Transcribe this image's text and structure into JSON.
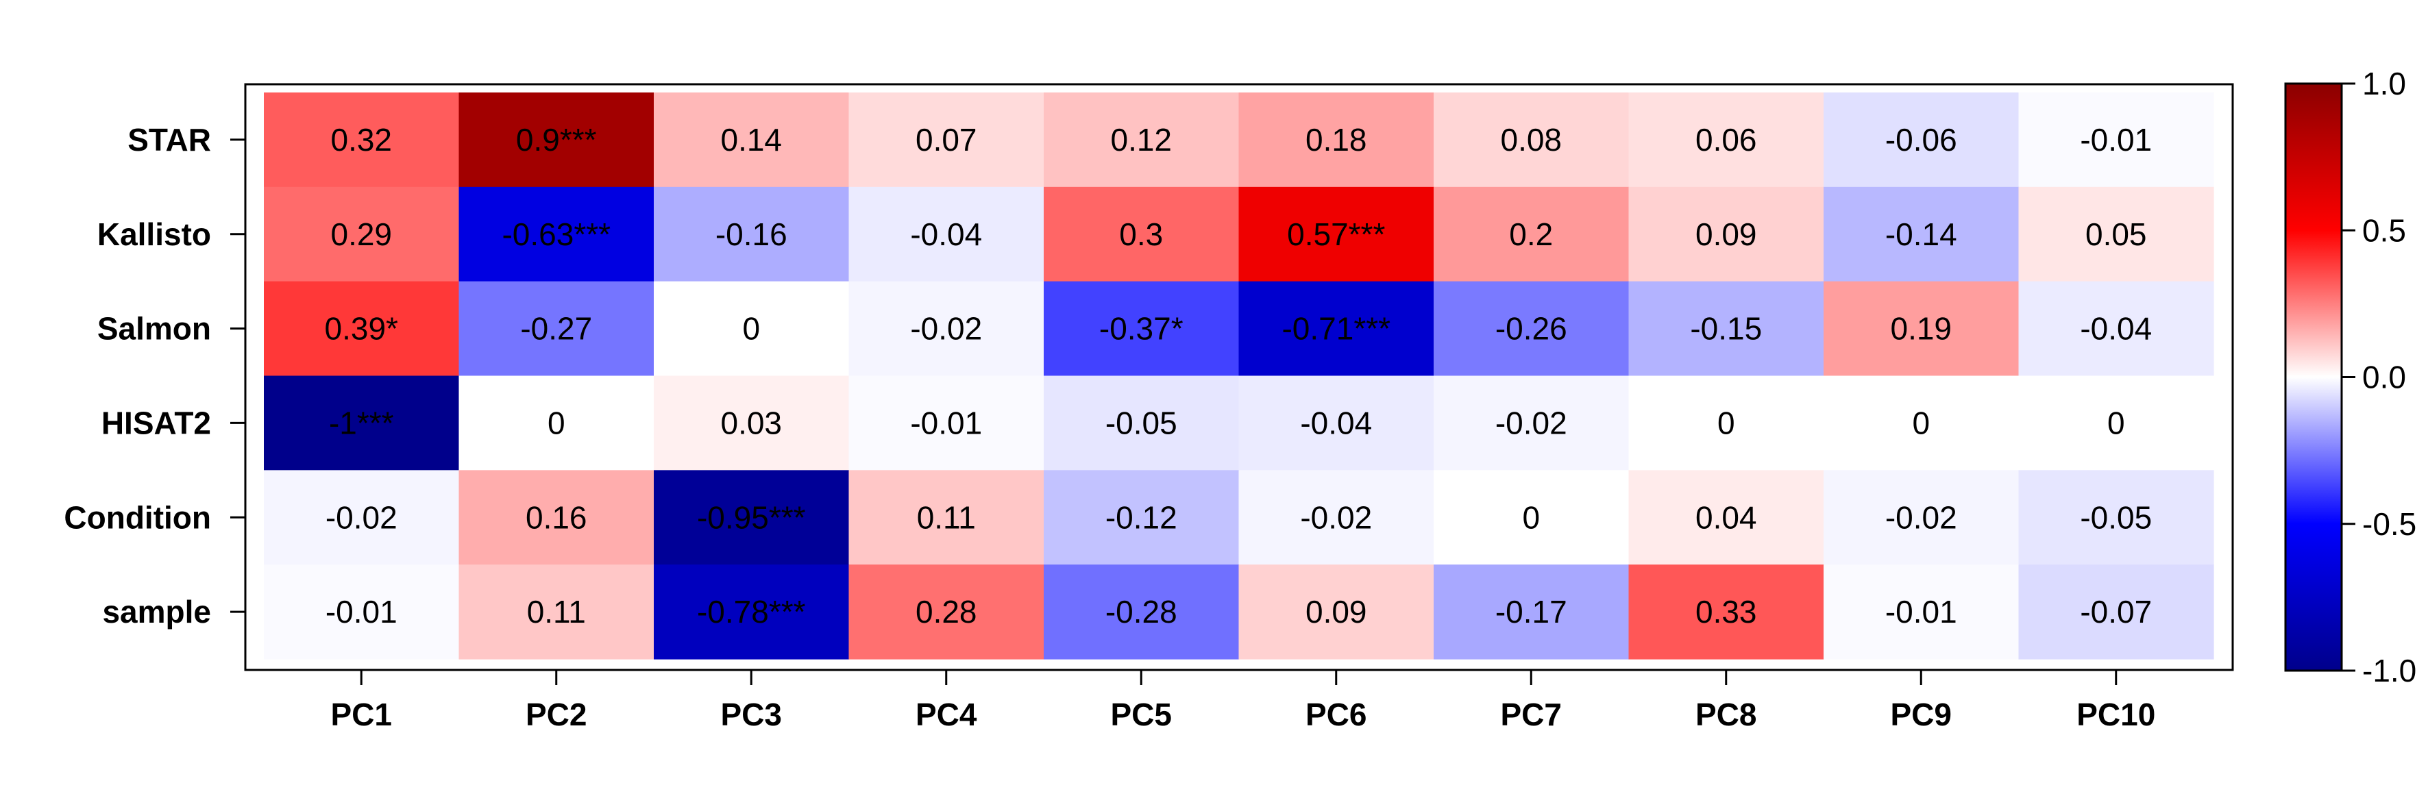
{
  "chart_data": {
    "type": "heatmap",
    "rows": [
      "STAR",
      "Kallisto",
      "Salmon",
      "HISAT2",
      "Condition",
      "sample"
    ],
    "columns": [
      "PC1",
      "PC2",
      "PC3",
      "PC4",
      "PC5",
      "PC6",
      "PC7",
      "PC8",
      "PC9",
      "PC10"
    ],
    "values": [
      [
        0.32,
        0.9,
        0.14,
        0.07,
        0.12,
        0.18,
        0.08,
        0.06,
        -0.06,
        -0.01
      ],
      [
        0.29,
        -0.63,
        -0.16,
        -0.04,
        0.3,
        0.57,
        0.2,
        0.09,
        -0.14,
        0.05
      ],
      [
        0.39,
        -0.27,
        0,
        -0.02,
        -0.37,
        -0.71,
        -0.26,
        -0.15,
        0.19,
        -0.04
      ],
      [
        -1,
        0,
        0.03,
        -0.01,
        -0.05,
        -0.04,
        -0.02,
        0,
        0,
        0
      ],
      [
        -0.02,
        0.16,
        -0.95,
        0.11,
        -0.12,
        -0.02,
        0,
        0.04,
        -0.02,
        -0.05
      ],
      [
        -0.01,
        0.11,
        -0.78,
        0.28,
        -0.28,
        0.09,
        -0.17,
        0.33,
        -0.01,
        -0.07
      ]
    ],
    "labels": [
      [
        "0.32",
        "0.9***",
        "0.14",
        "0.07",
        "0.12",
        "0.18",
        "0.08",
        "0.06",
        "-0.06",
        "-0.01"
      ],
      [
        "0.29",
        "-0.63***",
        "-0.16",
        "-0.04",
        "0.3",
        "0.57***",
        "0.2",
        "0.09",
        "-0.14",
        "0.05"
      ],
      [
        "0.39*",
        "-0.27",
        "0",
        "-0.02",
        "-0.37*",
        "-0.71***",
        "-0.26",
        "-0.15",
        "0.19",
        "-0.04"
      ],
      [
        "-1***",
        "0",
        "0.03",
        "-0.01",
        "-0.05",
        "-0.04",
        "-0.02",
        "0",
        "0",
        "0"
      ],
      [
        "-0.02",
        "0.16",
        "-0.95***",
        "0.11",
        "-0.12",
        "-0.02",
        "0",
        "0.04",
        "-0.02",
        "-0.05"
      ],
      [
        "-0.01",
        "0.11",
        "-0.78***",
        "0.28",
        "-0.28",
        "0.09",
        "-0.17",
        "0.33",
        "-0.01",
        "-0.07"
      ]
    ],
    "color_scale": {
      "range": [
        -1.0,
        1.0
      ],
      "stops": [
        {
          "value": -1.0,
          "color": "#00008B"
        },
        {
          "value": -0.5,
          "color": "#0000FF"
        },
        {
          "value": 0.0,
          "color": "#FFFFFF"
        },
        {
          "value": 0.5,
          "color": "#FF0000"
        },
        {
          "value": 1.0,
          "color": "#8B0000"
        }
      ],
      "ticks": [
        {
          "value": 1.0,
          "label": "1.0"
        },
        {
          "value": 0.5,
          "label": "0.5"
        },
        {
          "value": 0.0,
          "label": "0.0"
        },
        {
          "value": -0.5,
          "label": "-0.5"
        },
        {
          "value": -1.0,
          "label": "-1.0"
        }
      ]
    },
    "legend": "right",
    "grid": false
  }
}
